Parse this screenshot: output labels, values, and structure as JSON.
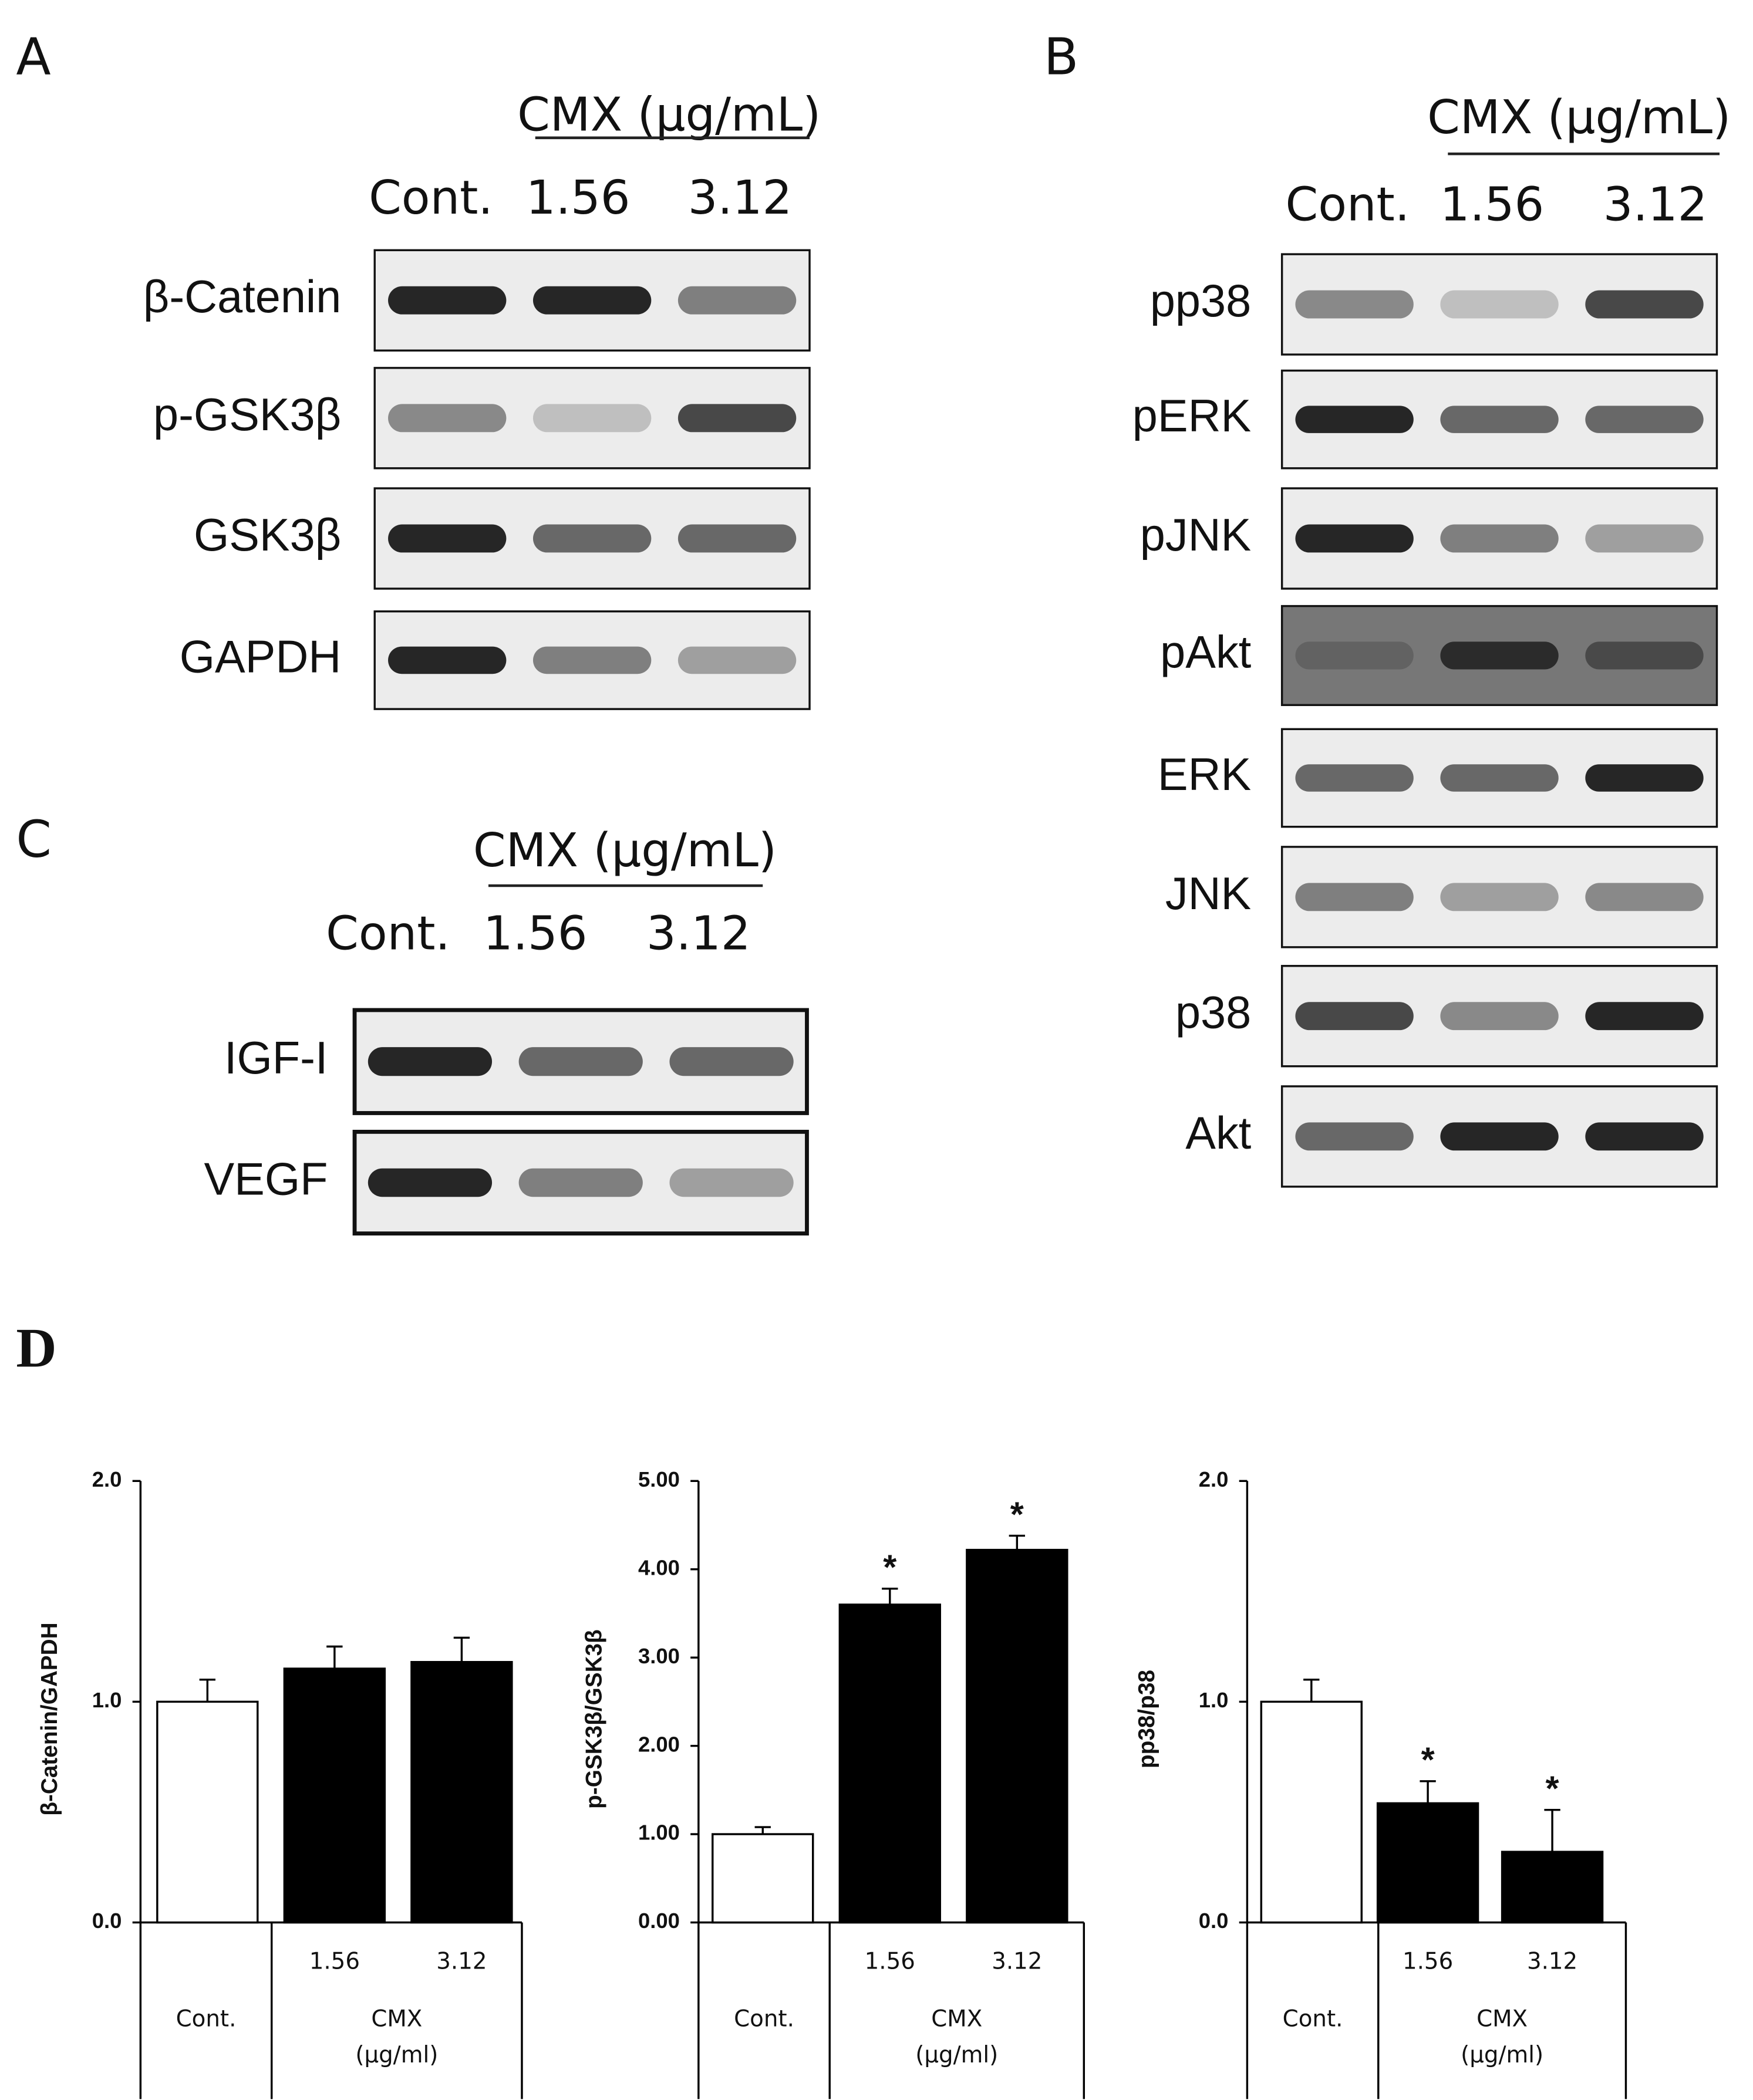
{
  "figure": {
    "blots": [
      {
        "panel": "A",
        "treatment": "CMX (µg/mL)",
        "lanes": [
          "Cont.",
          "1.56",
          "3.12"
        ],
        "rows": [
          "β-Catenin",
          "p-GSK3β",
          "GSK3β",
          "GAPDH"
        ]
      },
      {
        "panel": "B",
        "treatment": "CMX (µg/mL)",
        "lanes": [
          "Cont.",
          "1.56",
          "3.12"
        ],
        "rows": [
          "pp38",
          "pERK",
          "pJNK",
          "pAkt",
          "ERK",
          "JNK",
          "p38",
          "Akt"
        ]
      },
      {
        "panel": "C",
        "treatment": "CMX (µg/mL)",
        "lanes": [
          "Cont.",
          "1.56",
          "3.12"
        ],
        "rows": [
          "IGF-I",
          "VEGF"
        ]
      }
    ],
    "panel_d": "D"
  },
  "chart_data": [
    {
      "type": "bar",
      "y_label": "β-Catenin/GAPDH",
      "categories": [
        "Cont.",
        "1.56",
        "3.12"
      ],
      "group_label": [
        "CMX",
        "(µg/ml)"
      ],
      "values": [
        1.0,
        1.15,
        1.18
      ],
      "errors": [
        0.1,
        0.1,
        0.11
      ],
      "colors": [
        "#ffffff",
        "#000000",
        "#000000"
      ],
      "significance": [
        null,
        null,
        null
      ],
      "ylim": [
        0,
        2
      ],
      "yticks": [
        {
          "value": 0,
          "label": "0.0"
        },
        {
          "value": 1,
          "label": "1.0"
        },
        {
          "value": 2,
          "label": "2.0"
        }
      ]
    },
    {
      "type": "bar",
      "y_label": "p-GSK3β/GSK3β",
      "categories": [
        "Cont.",
        "1.56",
        "3.12"
      ],
      "group_label": [
        "CMX",
        "(µg/ml)"
      ],
      "values": [
        1.0,
        3.6,
        4.22
      ],
      "errors": [
        0.08,
        0.18,
        0.16
      ],
      "colors": [
        "#ffffff",
        "#000000",
        "#000000"
      ],
      "significance": [
        null,
        "*",
        "*"
      ],
      "ylim": [
        0,
        5
      ],
      "yticks": [
        {
          "value": 0,
          "label": "0.00"
        },
        {
          "value": 1,
          "label": "1.00"
        },
        {
          "value": 2,
          "label": "2.00"
        },
        {
          "value": 3,
          "label": "3.00"
        },
        {
          "value": 4,
          "label": "4.00"
        },
        {
          "value": 5,
          "label": "5.00"
        }
      ]
    },
    {
      "type": "bar",
      "y_label": "pp38/p38",
      "categories": [
        "Cont.",
        "1.56",
        "3.12"
      ],
      "group_label": [
        "CMX",
        "(µg/ml)"
      ],
      "values": [
        1.0,
        0.54,
        0.32
      ],
      "errors": [
        0.1,
        0.1,
        0.19
      ],
      "colors": [
        "#ffffff",
        "#000000",
        "#000000"
      ],
      "significance": [
        null,
        "*",
        "*"
      ],
      "ylim": [
        0,
        2
      ],
      "yticks": [
        {
          "value": 0,
          "label": "0.0"
        },
        {
          "value": 1,
          "label": "1.0"
        },
        {
          "value": 2,
          "label": "2.0"
        }
      ]
    }
  ]
}
